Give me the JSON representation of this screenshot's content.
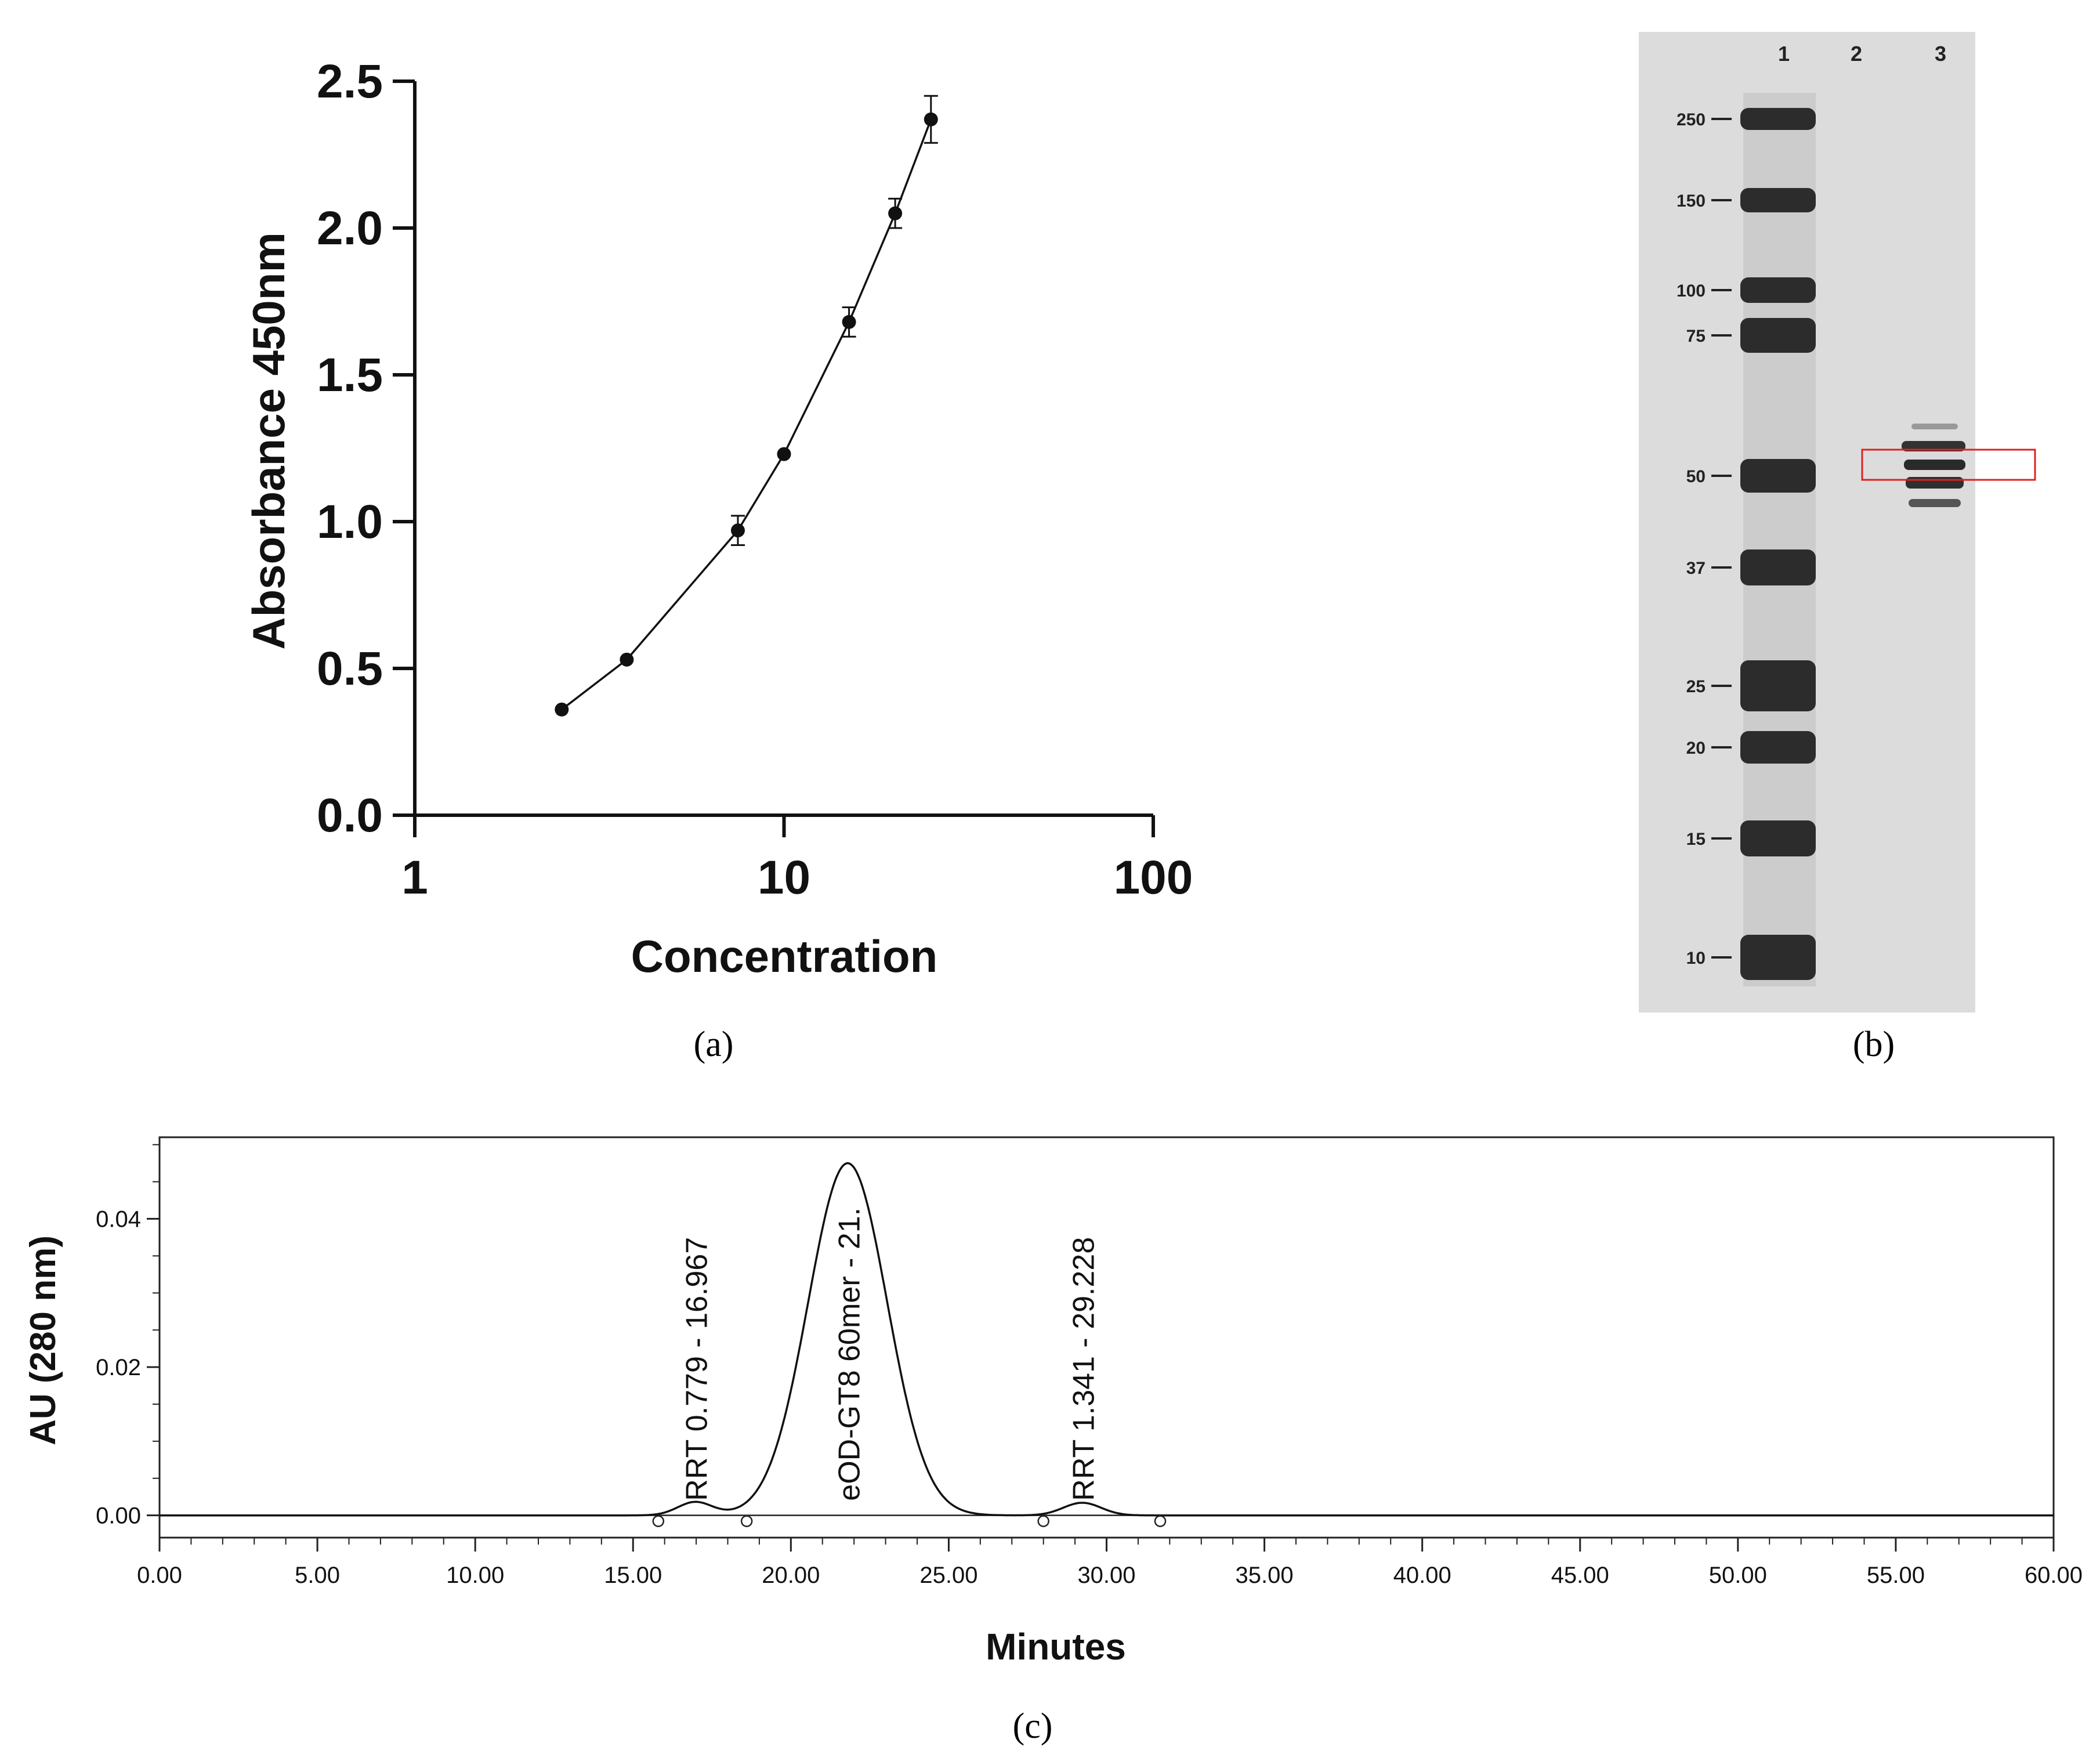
{
  "panels": {
    "a": {
      "caption": "(a)"
    },
    "b": {
      "caption": "(b)"
    },
    "c": {
      "caption": "(c)"
    }
  },
  "chart_data": [
    {
      "panel": "a",
      "type": "line",
      "xscale": "log",
      "title": "",
      "xlabel": "Concentration",
      "ylabel": "Absorbance 450nm",
      "xlim": [
        1,
        100
      ],
      "ylim": [
        0,
        2.5
      ],
      "xticks": [
        "1",
        "10",
        "100"
      ],
      "yticks": [
        "0.0",
        "0.5",
        "1.0",
        "1.5",
        "2.0",
        "2.5"
      ],
      "x": [
        2.5,
        3.75,
        7.5,
        10,
        15,
        20,
        25
      ],
      "y": [
        0.36,
        0.53,
        0.97,
        1.23,
        1.68,
        2.05,
        2.37
      ],
      "yerr": [
        0.01,
        0.01,
        0.05,
        0.015,
        0.05,
        0.05,
        0.08
      ]
    },
    {
      "panel": "b",
      "type": "gel",
      "lane_labels": [
        "1",
        "2",
        "3"
      ],
      "marker_labels": [
        "250",
        "150",
        "100",
        "75",
        "50",
        "37",
        "25",
        "20",
        "15",
        "10"
      ],
      "highlight_color": "#e02020"
    },
    {
      "panel": "c",
      "type": "line",
      "xlabel": "Minutes",
      "ylabel": "AU (280 nm)",
      "xlim": [
        0,
        60
      ],
      "ylim": [
        -0.003,
        0.051
      ],
      "xticks": [
        "0.00",
        "5.00",
        "10.00",
        "15.00",
        "20.00",
        "25.00",
        "30.00",
        "35.00",
        "40.00",
        "45.00",
        "50.00",
        "55.00",
        "60.00"
      ],
      "yticks": [
        "0.00",
        "0.02",
        "0.04"
      ],
      "peaks": [
        {
          "label": "RRT 0.779 - 16.967",
          "time": 16.967,
          "height": 0.0018,
          "sigma": 0.55
        },
        {
          "label": "eOD-GT8 60mer - 21.",
          "time": 21.8,
          "height": 0.0475,
          "sigma": 1.25
        },
        {
          "label": "RRT 1.341 - 29.228",
          "time": 29.228,
          "height": 0.0017,
          "sigma": 0.6
        }
      ],
      "baseline_markers": [
        15.8,
        18.6,
        28.0,
        31.7
      ]
    }
  ]
}
